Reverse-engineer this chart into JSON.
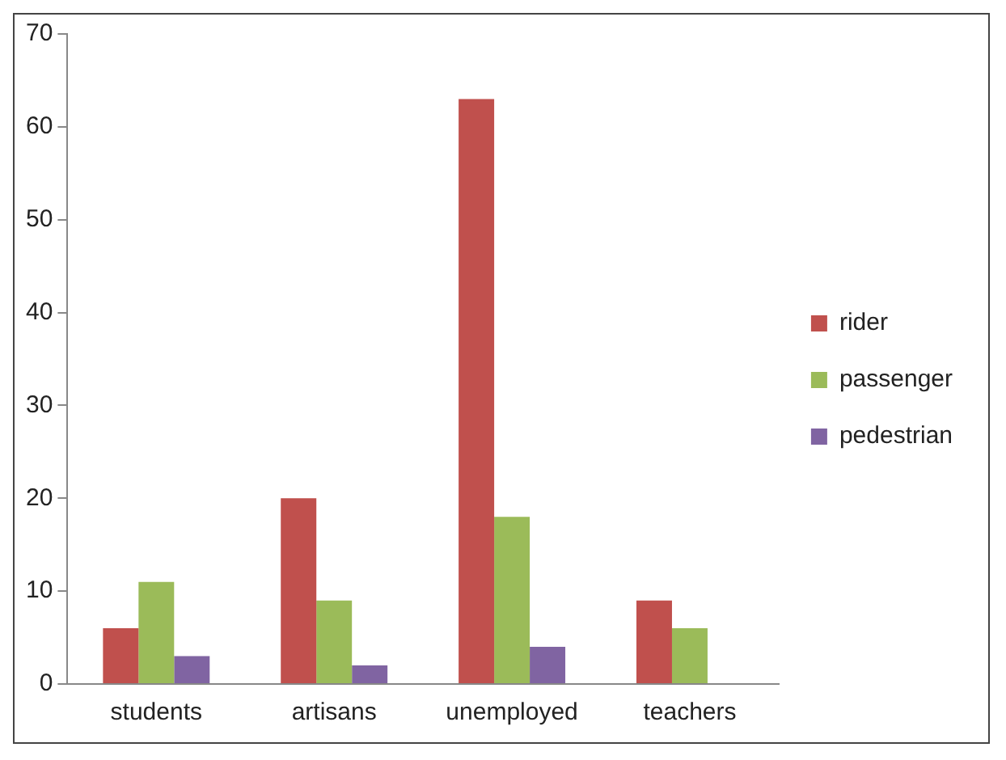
{
  "chart_data": {
    "type": "bar",
    "categories": [
      "students",
      "artisans",
      "unemployed",
      "teachers"
    ],
    "series": [
      {
        "name": "rider",
        "color": "#c0504d",
        "values": [
          6,
          20,
          63,
          9
        ]
      },
      {
        "name": "passenger",
        "color": "#9bbb59",
        "values": [
          11,
          9,
          18,
          6
        ]
      },
      {
        "name": "pedestrian",
        "color": "#8064a2",
        "values": [
          3,
          2,
          4,
          0
        ]
      }
    ],
    "ylim": [
      0,
      70
    ],
    "yticks": [
      0,
      10,
      20,
      30,
      40,
      50,
      60,
      70
    ],
    "grid": false,
    "legend": "right"
  }
}
